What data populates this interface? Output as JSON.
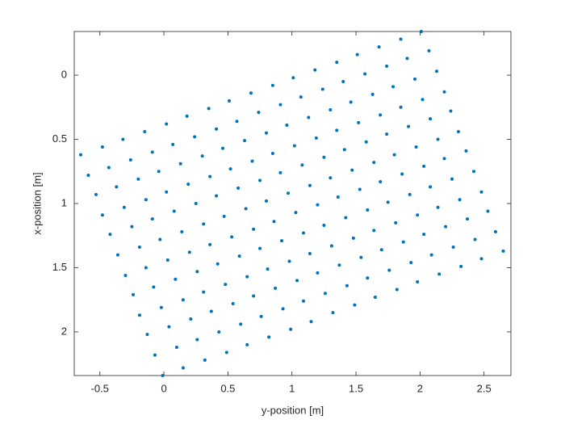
{
  "chart_data": {
    "type": "scatter",
    "xlabel": "y-position [m]",
    "ylabel": "x-position [m]",
    "color": "#0072bd",
    "y_reversed": true,
    "box": true,
    "xlim": [
      -0.7,
      2.71
    ],
    "ylim": [
      -0.34,
      2.34
    ],
    "xticks": [
      -0.5,
      0,
      0.5,
      1,
      1.5,
      2,
      2.5
    ],
    "yticks": [
      0,
      0.5,
      1,
      1.5,
      2
    ],
    "x": [
      -0.65,
      -0.59,
      -0.53,
      -0.48,
      -0.42,
      -0.36,
      -0.3,
      -0.24,
      -0.19,
      -0.13,
      -0.07,
      -0.01,
      -0.48,
      -0.43,
      -0.37,
      -0.31,
      -0.25,
      -0.19,
      -0.14,
      -0.08,
      -0.02,
      0.04,
      0.1,
      0.15,
      -0.32,
      -0.26,
      -0.2,
      -0.14,
      -0.09,
      -0.03,
      0.03,
      0.09,
      0.15,
      0.21,
      0.26,
      0.32,
      -0.15,
      -0.09,
      -0.04,
      0.02,
      0.08,
      0.14,
      0.2,
      0.26,
      0.31,
      0.37,
      0.43,
      0.49,
      0.02,
      0.07,
      0.13,
      0.19,
      0.25,
      0.31,
      0.36,
      0.42,
      0.48,
      0.54,
      0.6,
      0.65,
      0.18,
      0.24,
      0.3,
      0.36,
      0.41,
      0.47,
      0.53,
      0.59,
      0.65,
      0.7,
      0.76,
      0.82,
      0.35,
      0.41,
      0.46,
      0.52,
      0.58,
      0.64,
      0.7,
      0.75,
      0.81,
      0.87,
      0.93,
      0.99,
      0.51,
      0.57,
      0.63,
      0.69,
      0.75,
      0.8,
      0.86,
      0.92,
      0.98,
      1.04,
      1.09,
      1.15,
      0.68,
      0.74,
      0.8,
      0.85,
      0.91,
      0.97,
      1.03,
      1.09,
      1.14,
      1.2,
      1.26,
      1.32,
      0.85,
      0.91,
      0.96,
      1.02,
      1.08,
      1.14,
      1.2,
      1.25,
      1.31,
      1.37,
      1.43,
      1.49,
      1.01,
      1.07,
      1.13,
      1.19,
      1.25,
      1.3,
      1.36,
      1.42,
      1.48,
      1.54,
      1.59,
      1.65,
      1.18,
      1.24,
      1.3,
      1.35,
      1.41,
      1.47,
      1.53,
      1.59,
      1.64,
      1.7,
      1.76,
      1.82,
      1.35,
      1.4,
      1.46,
      1.52,
      1.58,
      1.64,
      1.69,
      1.75,
      1.81,
      1.87,
      1.93,
      1.98,
      1.51,
      1.57,
      1.63,
      1.69,
      1.74,
      1.8,
      1.86,
      1.92,
      1.98,
      2.03,
      2.09,
      2.15,
      1.68,
      1.74,
      1.79,
      1.85,
      1.91,
      1.97,
      2.03,
      2.08,
      2.14,
      2.2,
      2.26,
      2.32,
      1.85,
      1.9,
      1.96,
      2.02,
      2.08,
      2.14,
      2.19,
      2.25,
      2.31,
      2.37,
      2.43,
      2.48,
      2.01,
      2.07,
      2.13,
      2.19,
      2.24,
      2.3,
      2.36,
      2.42,
      2.48,
      2.53,
      2.59,
      2.65
    ],
    "y": [
      0.62,
      0.78,
      0.93,
      1.09,
      1.24,
      1.4,
      1.56,
      1.71,
      1.87,
      2.02,
      2.18,
      2.34,
      0.56,
      0.72,
      0.87,
      1.03,
      1.18,
      1.34,
      1.5,
      1.65,
      1.81,
      1.96,
      2.12,
      2.28,
      0.5,
      0.66,
      0.81,
      0.97,
      1.12,
      1.28,
      1.44,
      1.59,
      1.75,
      1.9,
      2.06,
      2.22,
      0.44,
      0.6,
      0.75,
      0.91,
      1.06,
      1.22,
      1.38,
      1.53,
      1.69,
      1.84,
      2.0,
      2.16,
      0.38,
      0.54,
      0.69,
      0.85,
      1.0,
      1.16,
      1.32,
      1.47,
      1.63,
      1.78,
      1.94,
      2.1,
      0.32,
      0.48,
      0.63,
      0.79,
      0.94,
      1.1,
      1.26,
      1.41,
      1.57,
      1.72,
      1.88,
      2.04,
      0.26,
      0.42,
      0.57,
      0.73,
      0.88,
      1.04,
      1.2,
      1.35,
      1.51,
      1.66,
      1.82,
      1.98,
      0.2,
      0.36,
      0.51,
      0.67,
      0.82,
      0.98,
      1.14,
      1.29,
      1.45,
      1.6,
      1.76,
      1.92,
      0.14,
      0.29,
      0.45,
      0.61,
      0.76,
      0.92,
      1.07,
      1.23,
      1.39,
      1.54,
      1.7,
      1.85,
      0.08,
      0.23,
      0.39,
      0.55,
      0.7,
      0.86,
      1.01,
      1.17,
      1.33,
      1.48,
      1.64,
      1.79,
      0.02,
      0.17,
      0.33,
      0.49,
      0.64,
      0.8,
      0.95,
      1.11,
      1.27,
      1.42,
      1.58,
      1.73,
      -0.04,
      0.11,
      0.27,
      0.43,
      0.58,
      0.74,
      0.89,
      1.05,
      1.21,
      1.36,
      1.52,
      1.67,
      -0.1,
      0.05,
      0.21,
      0.37,
      0.52,
      0.68,
      0.83,
      0.99,
      1.15,
      1.3,
      1.46,
      1.61,
      -0.16,
      -0.01,
      0.15,
      0.31,
      0.46,
      0.62,
      0.77,
      0.93,
      1.09,
      1.24,
      1.4,
      1.55,
      -0.22,
      -0.07,
      0.09,
      0.25,
      0.4,
      0.56,
      0.71,
      0.87,
      1.03,
      1.18,
      1.34,
      1.49,
      -0.28,
      -0.13,
      0.03,
      0.19,
      0.34,
      0.5,
      0.65,
      0.81,
      0.97,
      1.12,
      1.28,
      1.43,
      -0.34,
      -0.19,
      -0.03,
      0.13,
      0.28,
      0.44,
      0.59,
      0.75,
      0.91,
      1.06,
      1.22,
      1.37
    ]
  }
}
